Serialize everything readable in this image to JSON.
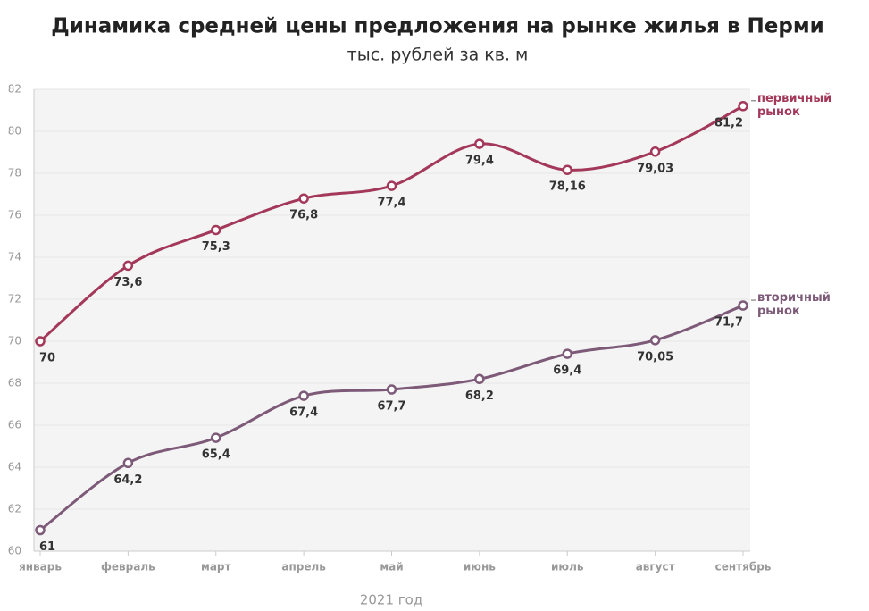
{
  "chart_data": {
    "type": "line",
    "title": "Динамика средней цены предложения на рынке жилья в Перми",
    "subtitle": "тыс. рублей за кв. м",
    "x_label": "2021 год",
    "categories": [
      "январь",
      "февраль",
      "март",
      "апрель",
      "май",
      "июнь",
      "июль",
      "август",
      "сентябрь"
    ],
    "series": [
      {
        "name": "первичный рынок",
        "color": "#a3385a",
        "values": [
          70,
          73.6,
          75.3,
          76.8,
          77.4,
          79.4,
          78.16,
          79.03,
          81.2
        ],
        "value_labels": [
          "70",
          "73,6",
          "75,3",
          "76,8",
          "77,4",
          "79,4",
          "78,16",
          "79,03",
          "81,2"
        ]
      },
      {
        "name": "вторичный рынок",
        "color": "#7d5a78",
        "values": [
          61,
          64.2,
          65.4,
          67.4,
          67.7,
          68.2,
          69.4,
          70.05,
          71.7
        ],
        "value_labels": [
          "61",
          "64,2",
          "65,4",
          "67,4",
          "67,7",
          "68,2",
          "69,4",
          "70,05",
          "71,7"
        ]
      }
    ],
    "ylim": [
      60,
      82
    ],
    "yticks": [
      60,
      62,
      64,
      66,
      68,
      70,
      72,
      74,
      76,
      78,
      80,
      82
    ],
    "grid": true
  }
}
